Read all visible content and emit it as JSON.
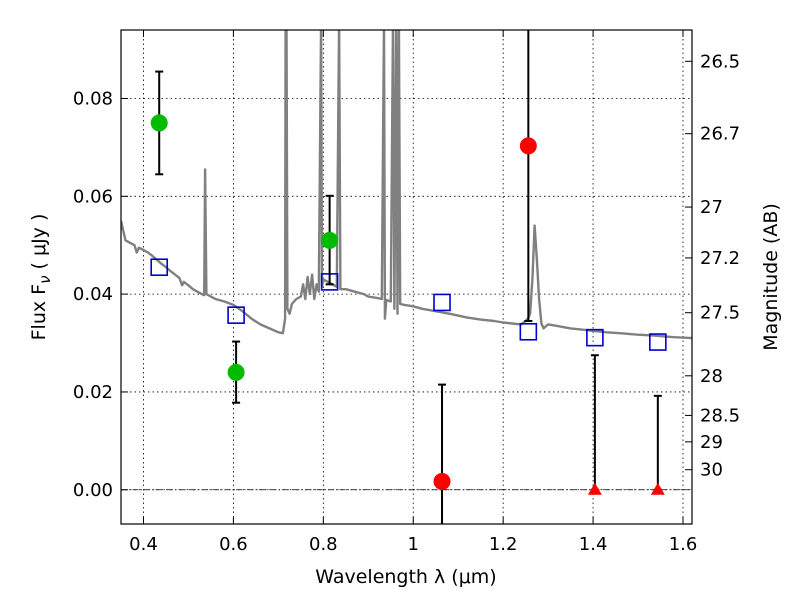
{
  "chart_data": {
    "type": "scatter",
    "title": "",
    "xlabel": "Wavelength  λ (μm)",
    "ylabel": "Flux  F",
    "ylabel_subscript": "ν",
    "ylabel_unit": "( μJy )",
    "right_ylabel": "Magnitude (AB)",
    "xlim": [
      0.35,
      1.62
    ],
    "ylim": [
      -0.007,
      0.094
    ],
    "grid": true,
    "x_ticks": [
      0.4,
      0.6,
      0.8,
      1.0,
      1.2,
      1.4,
      1.6
    ],
    "x_tick_labels": [
      "0.4",
      "0.6",
      "0.8",
      "1",
      "1.2",
      "1.4",
      "1.6"
    ],
    "y_ticks": [
      0.0,
      0.02,
      0.04,
      0.06,
      0.08
    ],
    "y_tick_labels": [
      "0.00",
      "0.02",
      "0.04",
      "0.06",
      "0.08"
    ],
    "right_ticks": [
      {
        "flux": 0.0876,
        "label": "26.5"
      },
      {
        "flux": 0.0728,
        "label": "26.7"
      },
      {
        "flux": 0.0578,
        "label": "27"
      },
      {
        "flux": 0.0474,
        "label": "27.2"
      },
      {
        "flux": 0.0362,
        "label": "27.5"
      },
      {
        "flux": 0.0233,
        "label": "28"
      },
      {
        "flux": 0.0152,
        "label": "28.5"
      },
      {
        "flux": 0.0098,
        "label": "29"
      },
      {
        "flux": 0.0041,
        "label": "30"
      }
    ],
    "zero_line": 0.0,
    "colors": {
      "template": "#808080",
      "detections": "#00bb00",
      "nondetections": "#ff0000",
      "model": "#0000cc",
      "errorbar": "#000000"
    },
    "template_spectrum": [
      [
        0.35,
        0.055
      ],
      [
        0.355,
        0.053
      ],
      [
        0.36,
        0.051
      ],
      [
        0.37,
        0.0505
      ],
      [
        0.38,
        0.05
      ],
      [
        0.385,
        0.0485
      ],
      [
        0.39,
        0.0495
      ],
      [
        0.4,
        0.049
      ],
      [
        0.41,
        0.0485
      ],
      [
        0.42,
        0.0478
      ],
      [
        0.43,
        0.047
      ],
      [
        0.44,
        0.0462
      ],
      [
        0.45,
        0.0455
      ],
      [
        0.46,
        0.0447
      ],
      [
        0.47,
        0.044
      ],
      [
        0.48,
        0.0433
      ],
      [
        0.486,
        0.0418
      ],
      [
        0.49,
        0.0425
      ],
      [
        0.5,
        0.0418
      ],
      [
        0.51,
        0.041
      ],
      [
        0.52,
        0.0405
      ],
      [
        0.53,
        0.04
      ],
      [
        0.535,
        0.0398
      ],
      [
        0.537,
        0.0655
      ],
      [
        0.54,
        0.04
      ],
      [
        0.55,
        0.0395
      ],
      [
        0.56,
        0.039
      ],
      [
        0.58,
        0.0385
      ],
      [
        0.6,
        0.0378
      ],
      [
        0.62,
        0.0365
      ],
      [
        0.64,
        0.035
      ],
      [
        0.66,
        0.0338
      ],
      [
        0.68,
        0.033
      ],
      [
        0.7,
        0.0322
      ],
      [
        0.71,
        0.032
      ],
      [
        0.715,
        0.035
      ],
      [
        0.716,
        0.096
      ],
      [
        0.718,
        0.096
      ],
      [
        0.72,
        0.037
      ],
      [
        0.725,
        0.036
      ],
      [
        0.73,
        0.038
      ],
      [
        0.74,
        0.039
      ],
      [
        0.75,
        0.0395
      ],
      [
        0.755,
        0.042
      ],
      [
        0.76,
        0.039
      ],
      [
        0.765,
        0.0435
      ],
      [
        0.77,
        0.04
      ],
      [
        0.775,
        0.044
      ],
      [
        0.78,
        0.039
      ],
      [
        0.785,
        0.042
      ],
      [
        0.79,
        0.0405
      ],
      [
        0.795,
        0.096
      ],
      [
        0.797,
        0.0415
      ],
      [
        0.8,
        0.043
      ],
      [
        0.81,
        0.0425
      ],
      [
        0.82,
        0.042
      ],
      [
        0.83,
        0.0415
      ],
      [
        0.835,
        0.096
      ],
      [
        0.838,
        0.041
      ],
      [
        0.85,
        0.041
      ],
      [
        0.87,
        0.0405
      ],
      [
        0.89,
        0.04
      ],
      [
        0.9,
        0.0395
      ],
      [
        0.92,
        0.0392
      ],
      [
        0.93,
        0.039
      ],
      [
        0.935,
        0.096
      ],
      [
        0.937,
        0.035
      ],
      [
        0.94,
        0.0388
      ],
      [
        0.95,
        0.0385
      ],
      [
        0.955,
        0.096
      ],
      [
        0.958,
        0.037
      ],
      [
        0.962,
        0.096
      ],
      [
        0.965,
        0.036
      ],
      [
        0.968,
        0.096
      ],
      [
        0.971,
        0.038
      ],
      [
        0.98,
        0.0378
      ],
      [
        1.0,
        0.0375
      ],
      [
        1.02,
        0.037
      ],
      [
        1.05,
        0.0365
      ],
      [
        1.08,
        0.036
      ],
      [
        1.1,
        0.0356
      ],
      [
        1.12,
        0.0352
      ],
      [
        1.15,
        0.0348
      ],
      [
        1.18,
        0.0345
      ],
      [
        1.2,
        0.0342
      ],
      [
        1.22,
        0.034
      ],
      [
        1.24,
        0.0338
      ],
      [
        1.25,
        0.0345
      ],
      [
        1.255,
        0.035
      ],
      [
        1.26,
        0.036
      ],
      [
        1.265,
        0.043
      ],
      [
        1.27,
        0.054
      ],
      [
        1.275,
        0.047
      ],
      [
        1.28,
        0.039
      ],
      [
        1.285,
        0.034
      ],
      [
        1.29,
        0.033
      ],
      [
        1.3,
        0.0338
      ],
      [
        1.32,
        0.0335
      ],
      [
        1.35,
        0.033
      ],
      [
        1.38,
        0.0327
      ],
      [
        1.4,
        0.0325
      ],
      [
        1.43,
        0.0322
      ],
      [
        1.46,
        0.032
      ],
      [
        1.5,
        0.0317
      ],
      [
        1.54,
        0.0315
      ],
      [
        1.58,
        0.0312
      ],
      [
        1.62,
        0.031
      ]
    ],
    "detections": [
      {
        "x": 0.435,
        "y": 0.075,
        "yerr_low": 0.0645,
        "yerr_high": 0.0855
      },
      {
        "x": 0.606,
        "y": 0.024,
        "yerr_low": 0.0178,
        "yerr_high": 0.0303
      },
      {
        "x": 0.814,
        "y": 0.051,
        "yerr_low": 0.042,
        "yerr_high": 0.0601
      }
    ],
    "nondetections": [
      {
        "x": 1.064,
        "y": 0.0017,
        "yerr_low": -0.0075,
        "yerr_high": 0.0215,
        "marker": "circle"
      },
      {
        "x": 1.256,
        "y": 0.0703,
        "yerr_low": 0.0345,
        "yerr_high": 0.096,
        "marker": "circle"
      },
      {
        "x": 1.404,
        "y": 0.0,
        "yerr_low": 0.0,
        "yerr_high": 0.0275,
        "marker": "triangle"
      },
      {
        "x": 1.544,
        "y": 0.0,
        "yerr_low": 0.0,
        "yerr_high": 0.0192,
        "marker": "triangle"
      }
    ],
    "model_points": [
      {
        "x": 0.435,
        "y": 0.0455
      },
      {
        "x": 0.606,
        "y": 0.0357
      },
      {
        "x": 0.814,
        "y": 0.0425
      },
      {
        "x": 1.064,
        "y": 0.0383
      },
      {
        "x": 1.256,
        "y": 0.0323
      },
      {
        "x": 1.404,
        "y": 0.0311
      },
      {
        "x": 1.544,
        "y": 0.0302
      }
    ]
  }
}
